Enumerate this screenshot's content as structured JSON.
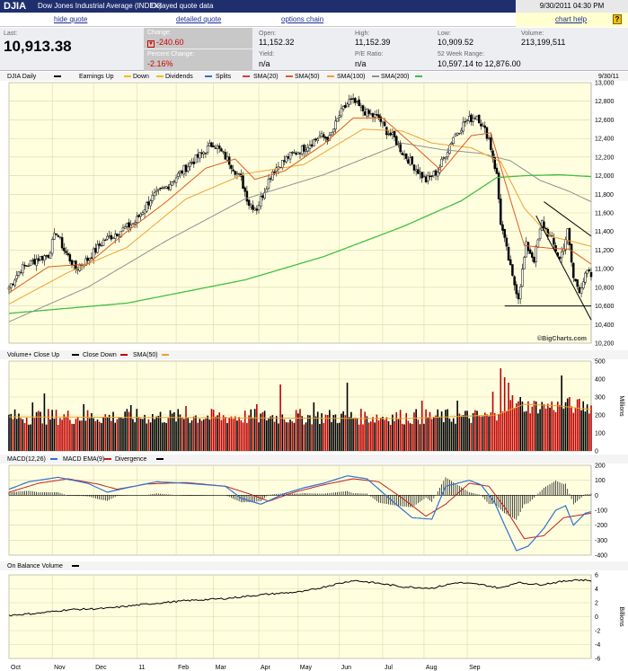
{
  "header": {
    "symbol": "DJIA",
    "name": "Dow Jones Industrial Average (INDEX)",
    "delay": "Delayed quote data",
    "datetime": "9/30/2011 04:30 PM"
  },
  "links": {
    "hide_quote": "hide quote",
    "detailed_quote": "detailed quote",
    "options_chain": "options chain",
    "chart_help": "chart help",
    "help_icon": "?"
  },
  "quote": {
    "last_label": "Last:",
    "last": "10,913.38",
    "change_label": "Change:",
    "change": "-240.60",
    "pct_label": "Percent Change:",
    "pct": "-2.16%",
    "open_label": "Open:",
    "open": "11,152.32",
    "yield_label": "Yield:",
    "yield": "n/a",
    "high_label": "High:",
    "high": "11,152.39",
    "pe_label": "P/E Ratio:",
    "pe": "n/a",
    "low_label": "Low:",
    "low": "10,909.52",
    "wk52_label": "52 Week Range:",
    "wk52": "10,597.14 to 12,876.00",
    "volume_label": "Volume:",
    "volume": "213,199,511"
  },
  "colors": {
    "plot_bg": "#ffffe0",
    "grid": "#d8d8a8",
    "up": "#000000",
    "down": "#c00000",
    "sma20": "#e05a1a",
    "sma50": "#f0a030",
    "sma100": "#909090",
    "sma200": "#40c040",
    "macd": "#3070d0",
    "ema": "#c02020"
  },
  "chart_data": [
    {
      "type": "line",
      "panel": "price",
      "title": "DJIA Daily",
      "legend": [
        "DJIA Daily",
        "Earnings Up",
        "Down",
        "Dividends",
        "Splits",
        "SMA(20)",
        "SMA(50)",
        "SMA(100)",
        "SMA(200)"
      ],
      "date_label": "9/30/11",
      "watermark": "©BigCharts.com",
      "ylim": [
        10200,
        13000
      ],
      "yticks": [
        13000,
        12800,
        12600,
        12400,
        12200,
        12000,
        11800,
        11600,
        11400,
        11200,
        11000,
        10800,
        10600,
        10400,
        10200
      ],
      "ytick_labels": [
        "13,000",
        "12,800",
        "12,600",
        "12,400",
        "12,200",
        "12,000",
        "11,800",
        "11,600",
        "11,400",
        "11,200",
        "11,000",
        "10,800",
        "10,600",
        "10,400",
        "10,200"
      ],
      "x_months": [
        "Oct",
        "Nov",
        "Dec",
        "11",
        "Feb",
        "Mar",
        "Apr",
        "May",
        "Jun",
        "Jul",
        "Aug",
        "Sep"
      ],
      "anchors": [
        [
          0,
          10800
        ],
        [
          6,
          11000
        ],
        [
          14,
          11100
        ],
        [
          20,
          11150
        ],
        [
          24,
          11400
        ],
        [
          28,
          11200
        ],
        [
          34,
          11000
        ],
        [
          40,
          11100
        ],
        [
          48,
          11300
        ],
        [
          56,
          11400
        ],
        [
          64,
          11500
        ],
        [
          72,
          11750
        ],
        [
          80,
          11880
        ],
        [
          88,
          12050
        ],
        [
          96,
          12200
        ],
        [
          104,
          12350
        ],
        [
          112,
          12150
        ],
        [
          118,
          11960
        ],
        [
          122,
          11700
        ],
        [
          126,
          11650
        ],
        [
          134,
          12050
        ],
        [
          142,
          12200
        ],
        [
          150,
          12300
        ],
        [
          158,
          12420
        ],
        [
          163,
          12400
        ],
        [
          168,
          12650
        ],
        [
          173,
          12800
        ],
        [
          176,
          12780
        ],
        [
          180,
          12700
        ],
        [
          184,
          12650
        ],
        [
          188,
          12620
        ],
        [
          192,
          12480
        ],
        [
          196,
          12400
        ],
        [
          200,
          12250
        ],
        [
          206,
          12100
        ],
        [
          212,
          11950
        ],
        [
          218,
          12050
        ],
        [
          226,
          12420
        ],
        [
          232,
          12580
        ],
        [
          238,
          12650
        ],
        [
          244,
          12400
        ],
        [
          248,
          12000
        ],
        [
          250,
          11500
        ],
        [
          253,
          11200
        ],
        [
          256,
          10900
        ],
        [
          259,
          10700
        ],
        [
          263,
          11250
        ],
        [
          267,
          11100
        ],
        [
          271,
          11500
        ],
        [
          276,
          11300
        ],
        [
          280,
          11100
        ],
        [
          284,
          11400
        ],
        [
          287,
          10900
        ],
        [
          290,
          10780
        ],
        [
          294,
          10960
        ],
        [
          296,
          10913
        ]
      ],
      "sma20": [
        [
          0,
          10740
        ],
        [
          20,
          11020
        ],
        [
          40,
          11050
        ],
        [
          60,
          11400
        ],
        [
          80,
          11720
        ],
        [
          100,
          12080
        ],
        [
          115,
          12180
        ],
        [
          125,
          11960
        ],
        [
          140,
          12050
        ],
        [
          160,
          12340
        ],
        [
          175,
          12620
        ],
        [
          190,
          12620
        ],
        [
          205,
          12340
        ],
        [
          220,
          12050
        ],
        [
          235,
          12430
        ],
        [
          245,
          12460
        ],
        [
          252,
          11950
        ],
        [
          262,
          11250
        ],
        [
          275,
          11220
        ],
        [
          285,
          11210
        ],
        [
          296,
          11050
        ]
      ],
      "sma50": [
        [
          0,
          10620
        ],
        [
          30,
          10960
        ],
        [
          60,
          11230
        ],
        [
          90,
          11750
        ],
        [
          120,
          12020
        ],
        [
          150,
          12120
        ],
        [
          180,
          12500
        ],
        [
          200,
          12480
        ],
        [
          215,
          12350
        ],
        [
          235,
          12300
        ],
        [
          250,
          12150
        ],
        [
          262,
          11650
        ],
        [
          275,
          11350
        ],
        [
          285,
          11300
        ],
        [
          296,
          11240
        ]
      ],
      "sma100": [
        [
          0,
          10430
        ],
        [
          40,
          10800
        ],
        [
          80,
          11300
        ],
        [
          120,
          11750
        ],
        [
          160,
          12010
        ],
        [
          200,
          12350
        ],
        [
          220,
          12280
        ],
        [
          240,
          12240
        ],
        [
          255,
          12160
        ],
        [
          270,
          11950
        ],
        [
          285,
          11830
        ],
        [
          296,
          11720
        ]
      ],
      "sma200": [
        [
          0,
          10520
        ],
        [
          60,
          10630
        ],
        [
          120,
          10880
        ],
        [
          160,
          11130
        ],
        [
          200,
          11450
        ],
        [
          230,
          11730
        ],
        [
          248,
          11980
        ],
        [
          262,
          12000
        ],
        [
          280,
          12010
        ],
        [
          296,
          11990
        ]
      ],
      "trendlines": [
        [
          [
            272,
            11720
          ],
          [
            296,
            11350
          ]
        ],
        [
          [
            268,
            11570
          ],
          [
            296,
            10450
          ]
        ],
        [
          [
            252,
            10600
          ],
          [
            296,
            10600
          ]
        ]
      ]
    },
    {
      "type": "bar",
      "panel": "volume",
      "legend": [
        "Volume+ Close Up",
        "Close Down",
        "SMA(50)"
      ],
      "ylabel": "Millions",
      "ylim": [
        0,
        500
      ],
      "yticks": [
        0,
        100,
        200,
        300,
        400,
        500
      ],
      "base_level": 190,
      "spikes": [
        [
          12,
          270
        ],
        [
          18,
          320
        ],
        [
          38,
          260
        ],
        [
          62,
          255
        ],
        [
          90,
          250
        ],
        [
          126,
          260
        ],
        [
          138,
          370
        ],
        [
          155,
          270
        ],
        [
          172,
          380
        ],
        [
          210,
          280
        ],
        [
          228,
          280
        ],
        [
          246,
          330
        ],
        [
          250,
          460
        ],
        [
          252,
          410
        ],
        [
          254,
          380
        ],
        [
          256,
          310
        ],
        [
          260,
          300
        ],
        [
          272,
          260
        ],
        [
          281,
          420
        ],
        [
          285,
          300
        ],
        [
          288,
          240
        ]
      ]
    },
    {
      "type": "line",
      "panel": "macd",
      "legend": [
        "MACD(12,26)",
        "MACD EMA(9)",
        "Divergence"
      ],
      "ylim": [
        -400,
        200
      ],
      "yticks": [
        -400,
        -300,
        -200,
        -100,
        0,
        100,
        200
      ],
      "macd_anchors": [
        [
          0,
          40
        ],
        [
          10,
          90
        ],
        [
          25,
          120
        ],
        [
          40,
          80
        ],
        [
          50,
          20
        ],
        [
          60,
          50
        ],
        [
          75,
          90
        ],
        [
          90,
          80
        ],
        [
          100,
          70
        ],
        [
          110,
          60
        ],
        [
          118,
          -20
        ],
        [
          128,
          -60
        ],
        [
          140,
          10
        ],
        [
          150,
          50
        ],
        [
          160,
          80
        ],
        [
          172,
          130
        ],
        [
          182,
          110
        ],
        [
          195,
          -40
        ],
        [
          205,
          -150
        ],
        [
          215,
          -160
        ],
        [
          222,
          60
        ],
        [
          234,
          100
        ],
        [
          240,
          70
        ],
        [
          247,
          -50
        ],
        [
          252,
          -200
        ],
        [
          258,
          -370
        ],
        [
          264,
          -340
        ],
        [
          272,
          -220
        ],
        [
          278,
          -100
        ],
        [
          283,
          -70
        ],
        [
          287,
          -200
        ],
        [
          293,
          -120
        ],
        [
          296,
          -110
        ]
      ],
      "ema_anchors": [
        [
          0,
          20
        ],
        [
          15,
          80
        ],
        [
          30,
          110
        ],
        [
          45,
          75
        ],
        [
          55,
          40
        ],
        [
          70,
          75
        ],
        [
          90,
          85
        ],
        [
          110,
          60
        ],
        [
          122,
          10
        ],
        [
          132,
          -40
        ],
        [
          145,
          20
        ],
        [
          160,
          70
        ],
        [
          175,
          110
        ],
        [
          188,
          90
        ],
        [
          200,
          -20
        ],
        [
          212,
          -140
        ],
        [
          222,
          -60
        ],
        [
          234,
          80
        ],
        [
          244,
          60
        ],
        [
          252,
          -80
        ],
        [
          262,
          -290
        ],
        [
          272,
          -270
        ],
        [
          282,
          -150
        ],
        [
          296,
          -120
        ]
      ]
    },
    {
      "type": "line",
      "panel": "obv",
      "title": "On Balance Volume",
      "ylabel": "Billions",
      "ylim": [
        -6,
        6
      ],
      "yticks": [
        6,
        4,
        2,
        0,
        -2,
        -4,
        -6
      ],
      "anchors": [
        [
          0,
          0.2
        ],
        [
          15,
          0.5
        ],
        [
          30,
          1
        ],
        [
          50,
          1.2
        ],
        [
          70,
          1.8
        ],
        [
          90,
          2.3
        ],
        [
          110,
          2.6
        ],
        [
          130,
          3.2
        ],
        [
          150,
          3.6
        ],
        [
          165,
          4.6
        ],
        [
          175,
          5.2
        ],
        [
          185,
          4.9
        ],
        [
          200,
          4.3
        ],
        [
          215,
          4.1
        ],
        [
          228,
          4.9
        ],
        [
          240,
          4.6
        ],
        [
          250,
          4.1
        ],
        [
          258,
          4.9
        ],
        [
          270,
          4.6
        ],
        [
          280,
          5.0
        ],
        [
          288,
          5.3
        ],
        [
          296,
          5.2
        ]
      ]
    }
  ]
}
